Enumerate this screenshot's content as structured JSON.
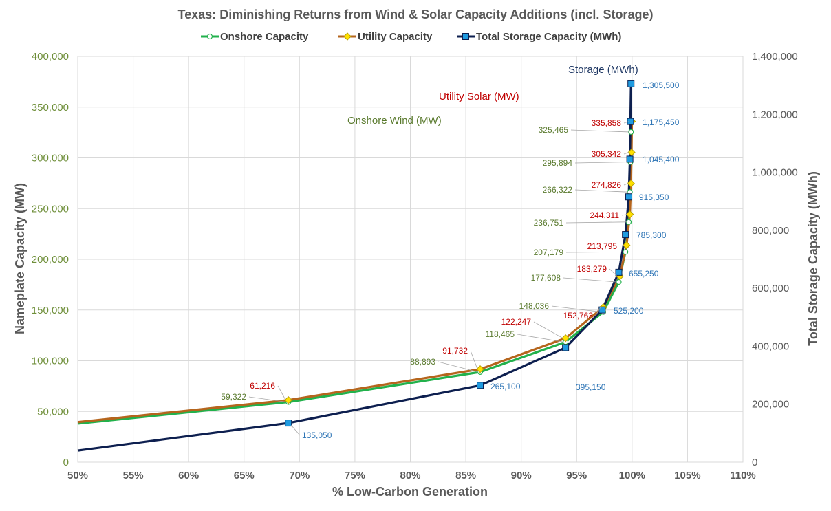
{
  "chart_data": {
    "type": "line",
    "title": "Texas: Diminishing Returns from Wind & Solar Capacity Additions (incl. Storage)",
    "xlabel": "% Low-Carbon Generation",
    "ylabel": "Nameplate Capacity (MW)",
    "y2label": "Total Storage Capacity (MWh)",
    "xlim": [
      50,
      110
    ],
    "ylim": [
      0,
      400000
    ],
    "y2lim": [
      0,
      1400000
    ],
    "x_ticks": [
      "50%",
      "55%",
      "60%",
      "65%",
      "70%",
      "75%",
      "80%",
      "85%",
      "90%",
      "95%",
      "100%",
      "105%",
      "110%"
    ],
    "y_ticks": [
      "0",
      "50,000",
      "100,000",
      "150,000",
      "200,000",
      "250,000",
      "300,000",
      "350,000",
      "400,000"
    ],
    "y2_ticks": [
      "0",
      "200,000",
      "400,000",
      "600,000",
      "800,000",
      "1,000,000",
      "1,200,000",
      "1,400,000"
    ],
    "grid": true,
    "legend_position": "top",
    "series": [
      {
        "name": "Onshore Capacity",
        "color": "#22b14c",
        "axis": "left",
        "annotation": "Onshore  Wind (MW)",
        "label_color": "#5a7a2e",
        "x": [
          50,
          69,
          86.3,
          94,
          97.4,
          98.8,
          99.4,
          99.7,
          99.8,
          99.85,
          99.9
        ],
        "values": [
          38000,
          59322,
          88893,
          118465,
          148036,
          177608,
          207179,
          236751,
          266322,
          295894,
          325465
        ],
        "labels": [
          "",
          "59,322",
          "88,893",
          "118,465",
          "148,036",
          "177,608",
          "207,179",
          "236,751",
          "266,322",
          "295,894",
          "325,465"
        ]
      },
      {
        "name": "Utility Capacity",
        "color": "#b5651d",
        "axis": "left",
        "annotation": "Utility  Solar (MW)",
        "label_color": "#c00000",
        "x": [
          50,
          69,
          86.3,
          94,
          97.4,
          98.9,
          99.5,
          99.8,
          99.9,
          99.95,
          99.98
        ],
        "values": [
          39500,
          61216,
          91732,
          122247,
          152763,
          183279,
          213795,
          244311,
          274826,
          305342,
          335858
        ],
        "labels": [
          "",
          "61,216",
          "91,732",
          "122,247",
          "152,763",
          "183,279",
          "213,795",
          "244,311",
          "274,826",
          "305,342",
          "335,858"
        ]
      },
      {
        "name": "Total Storage Capacity (MWh)",
        "color": "#0d1f4f",
        "axis": "right",
        "annotation": "Storage (MWh)",
        "label_color": "#2e75b6",
        "x": [
          50,
          69,
          86.3,
          94,
          97.3,
          98.8,
          99.4,
          99.7,
          99.8,
          99.85,
          99.9
        ],
        "values": [
          40000,
          135050,
          265100,
          395150,
          525200,
          655250,
          785300,
          915350,
          1045400,
          1175450,
          1305500
        ],
        "labels": [
          "",
          "135,050",
          "265,100",
          "395,150",
          "525,200",
          "655,250",
          "785,300",
          "915,350",
          "1,045,400",
          "1,175,450",
          "1,305,500"
        ]
      }
    ]
  }
}
